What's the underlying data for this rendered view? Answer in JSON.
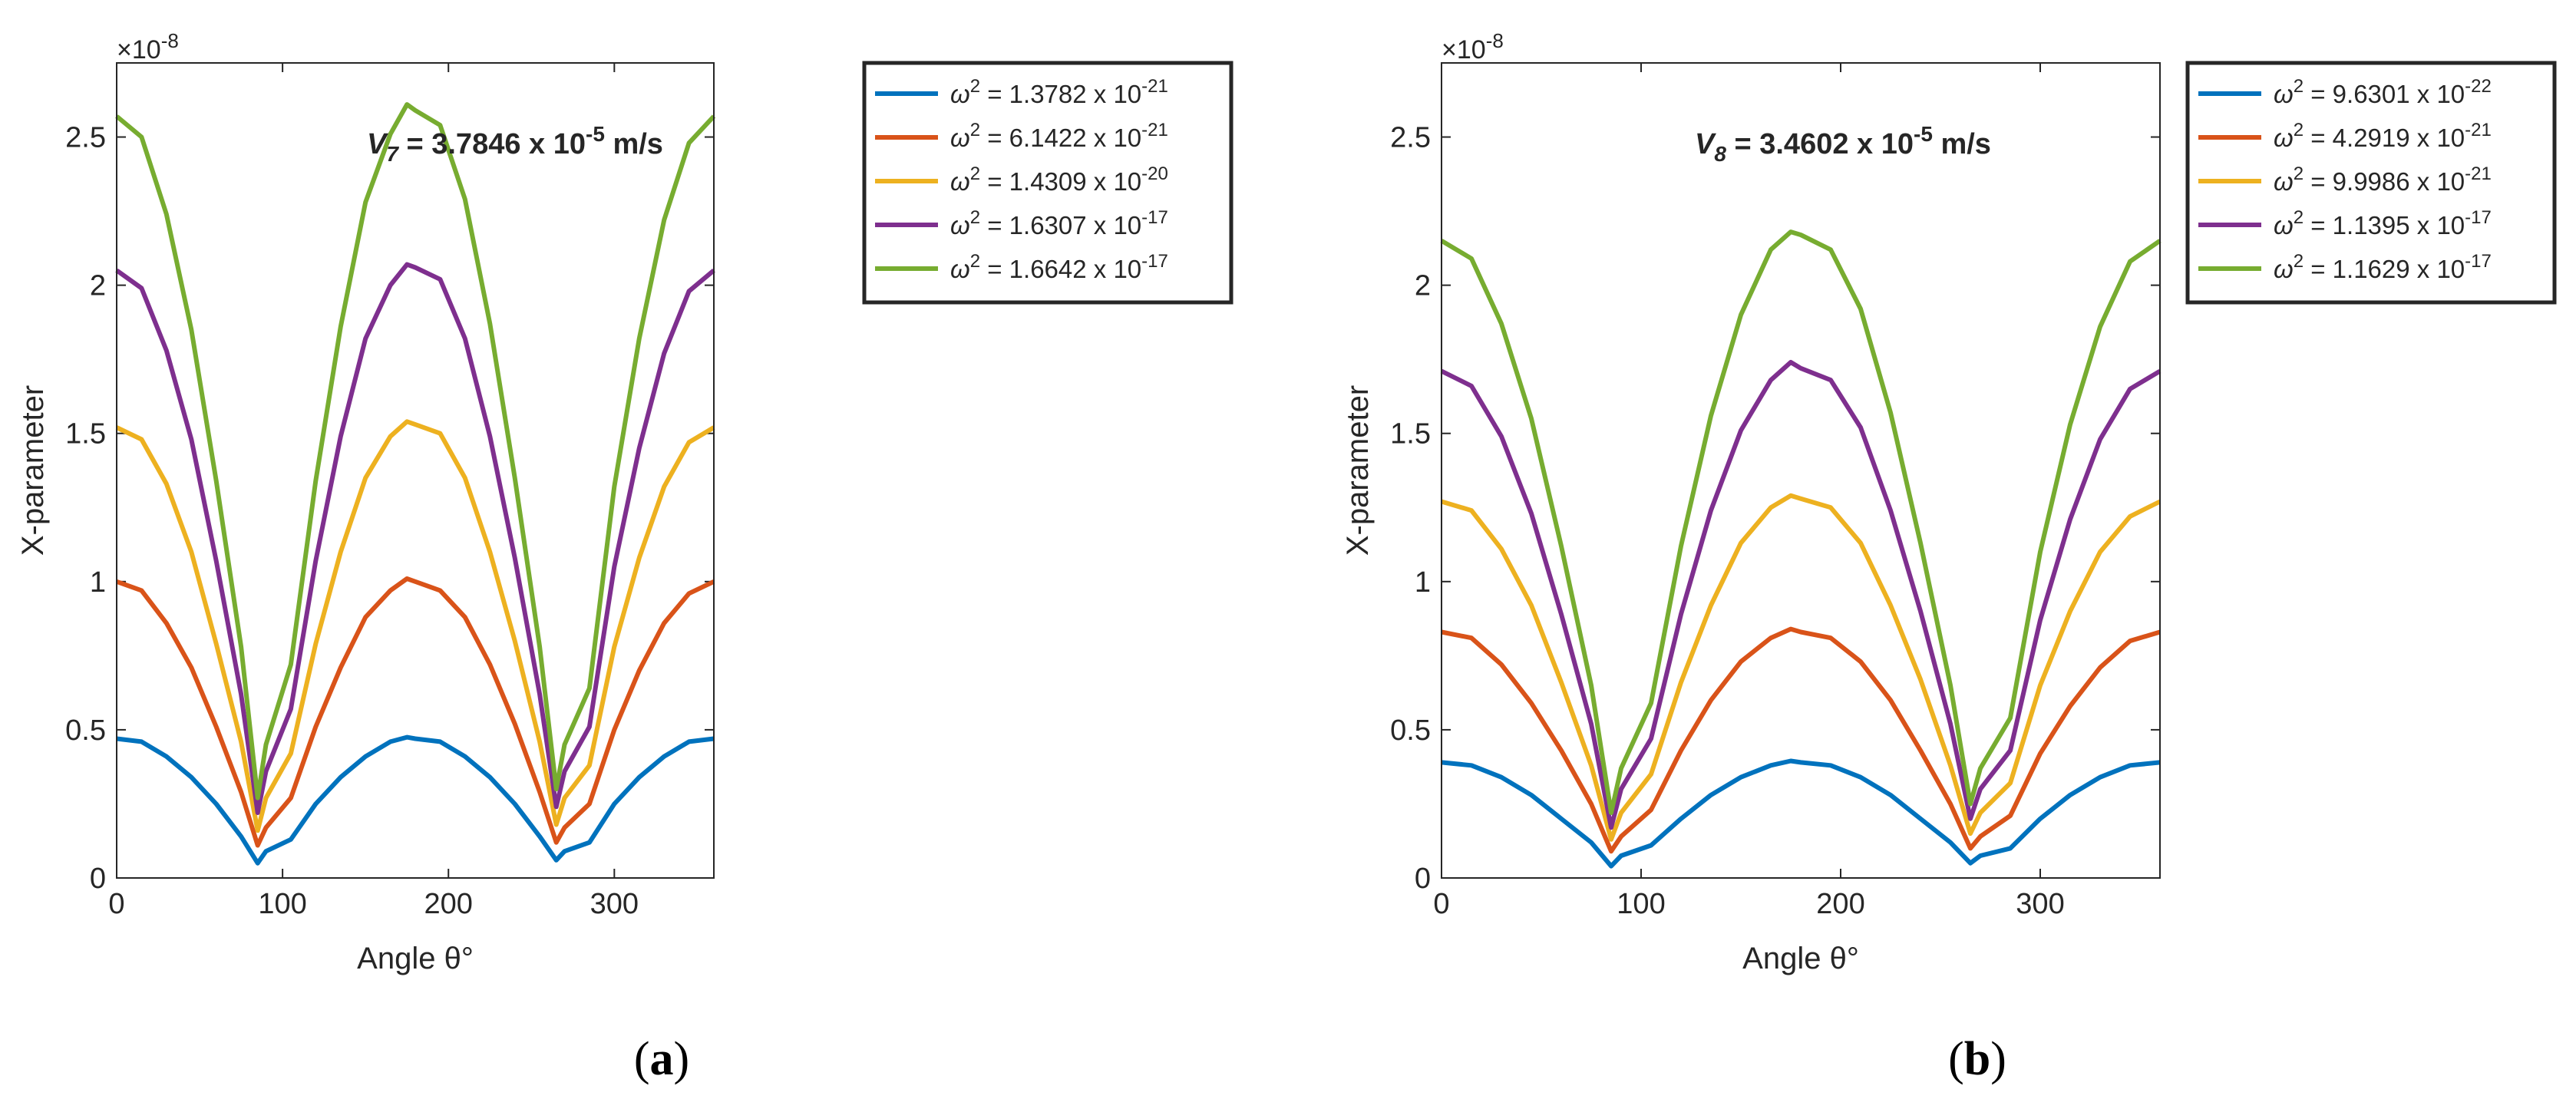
{
  "figure": {
    "caption_a": "(a)",
    "caption_b": "(b)"
  },
  "colors": {
    "axis": "#262626",
    "s1": "#0072BD",
    "s2": "#D95319",
    "s3": "#EDB120",
    "s4": "#7E2F8E",
    "s5": "#77AC30"
  },
  "chart_data": [
    {
      "type": "line",
      "id": "a",
      "xlabel": "Angle θ°",
      "ylabel": "X-parameter",
      "exponent_label": "×10",
      "exponent_power": "-8",
      "xlim": [
        0,
        360
      ],
      "ylim": [
        0,
        2.75
      ],
      "xticks": [
        0,
        100,
        200,
        300
      ],
      "yticks": [
        0,
        0.5,
        1,
        1.5,
        2,
        2.5
      ],
      "ytick_labels": [
        "0",
        "0.5",
        "1",
        "1.5",
        "2",
        "2.5"
      ],
      "xtick_labels": [
        "0",
        "100",
        "200",
        "300"
      ],
      "annotation": {
        "var": "V",
        "sub": "7",
        "text": " = 3.7846 x 10",
        "sup": "-5",
        "unit": " m/s"
      },
      "x": [
        0,
        15,
        30,
        45,
        60,
        75,
        85,
        90,
        105,
        120,
        135,
        150,
        165,
        175,
        180,
        195,
        210,
        225,
        240,
        255,
        265,
        270,
        285,
        300,
        315,
        330,
        345,
        360
      ],
      "series": [
        {
          "name": "ω² = 1.3782 x 10⁻²¹",
          "base": "1.3782",
          "exp": "-21",
          "color": "s1",
          "values": [
            0.47,
            0.46,
            0.41,
            0.34,
            0.25,
            0.14,
            0.05,
            0.09,
            0.13,
            0.25,
            0.34,
            0.41,
            0.46,
            0.475,
            0.47,
            0.46,
            0.41,
            0.34,
            0.25,
            0.14,
            0.06,
            0.09,
            0.12,
            0.25,
            0.34,
            0.41,
            0.46,
            0.47
          ]
        },
        {
          "name": "ω² = 6.1422 x 10⁻²¹",
          "base": "6.1422",
          "exp": "-21",
          "color": "s2",
          "values": [
            1.0,
            0.97,
            0.86,
            0.71,
            0.51,
            0.29,
            0.11,
            0.17,
            0.27,
            0.51,
            0.71,
            0.88,
            0.97,
            1.01,
            1.0,
            0.97,
            0.88,
            0.72,
            0.52,
            0.29,
            0.12,
            0.17,
            0.25,
            0.5,
            0.7,
            0.86,
            0.96,
            1.0
          ]
        },
        {
          "name": "ω² = 1.4309 x 10⁻²⁰",
          "base": "1.4309",
          "exp": "-20",
          "color": "s3",
          "values": [
            1.52,
            1.48,
            1.33,
            1.1,
            0.79,
            0.46,
            0.16,
            0.27,
            0.42,
            0.79,
            1.1,
            1.35,
            1.49,
            1.54,
            1.53,
            1.5,
            1.35,
            1.1,
            0.8,
            0.46,
            0.18,
            0.27,
            0.38,
            0.78,
            1.08,
            1.32,
            1.47,
            1.52
          ]
        },
        {
          "name": "ω² = 1.6307 x 10⁻¹⁷",
          "base": "1.6307",
          "exp": "-17",
          "color": "s4",
          "values": [
            2.05,
            1.99,
            1.78,
            1.48,
            1.07,
            0.62,
            0.22,
            0.36,
            0.57,
            1.07,
            1.49,
            1.82,
            2.0,
            2.07,
            2.06,
            2.02,
            1.82,
            1.49,
            1.08,
            0.62,
            0.24,
            0.36,
            0.51,
            1.05,
            1.45,
            1.77,
            1.98,
            2.05
          ]
        },
        {
          "name": "ω² = 1.6642 x 10⁻¹⁷",
          "base": "1.6642",
          "exp": "-17",
          "color": "s5",
          "values": [
            2.57,
            2.5,
            2.24,
            1.85,
            1.34,
            0.78,
            0.27,
            0.45,
            0.72,
            1.34,
            1.86,
            2.28,
            2.51,
            2.61,
            2.59,
            2.54,
            2.29,
            1.87,
            1.35,
            0.78,
            0.3,
            0.45,
            0.64,
            1.32,
            1.82,
            2.22,
            2.48,
            2.57
          ]
        }
      ]
    },
    {
      "type": "line",
      "id": "b",
      "xlabel": "Angle θ°",
      "ylabel": "X-parameter",
      "exponent_label": "×10",
      "exponent_power": "-8",
      "xlim": [
        0,
        360
      ],
      "ylim": [
        0,
        2.75
      ],
      "xticks": [
        0,
        100,
        200,
        300
      ],
      "yticks": [
        0,
        0.5,
        1,
        1.5,
        2,
        2.5
      ],
      "ytick_labels": [
        "0",
        "0.5",
        "1",
        "1.5",
        "2",
        "2.5"
      ],
      "xtick_labels": [
        "0",
        "100",
        "200",
        "300"
      ],
      "annotation": {
        "var": "V",
        "sub": "8",
        "text": " = 3.4602 x 10",
        "sup": "-5",
        "unit": " m/s"
      },
      "x": [
        0,
        15,
        30,
        45,
        60,
        75,
        85,
        90,
        105,
        120,
        135,
        150,
        165,
        175,
        180,
        195,
        210,
        225,
        240,
        255,
        265,
        270,
        285,
        300,
        315,
        330,
        345,
        360
      ],
      "series": [
        {
          "name": "ω² = 9.6301 x 10⁻²²",
          "base": "9.6301",
          "exp": "-22",
          "color": "s1",
          "values": [
            0.39,
            0.38,
            0.34,
            0.28,
            0.2,
            0.12,
            0.04,
            0.075,
            0.11,
            0.2,
            0.28,
            0.34,
            0.38,
            0.395,
            0.39,
            0.38,
            0.34,
            0.28,
            0.2,
            0.12,
            0.05,
            0.075,
            0.1,
            0.2,
            0.28,
            0.34,
            0.38,
            0.39
          ]
        },
        {
          "name": "ω² = 4.2919 x 10⁻²¹",
          "base": "4.2919",
          "exp": "-21",
          "color": "s2",
          "values": [
            0.83,
            0.81,
            0.72,
            0.59,
            0.43,
            0.25,
            0.09,
            0.14,
            0.23,
            0.43,
            0.6,
            0.73,
            0.81,
            0.84,
            0.83,
            0.81,
            0.73,
            0.6,
            0.43,
            0.25,
            0.1,
            0.14,
            0.21,
            0.42,
            0.58,
            0.71,
            0.8,
            0.83
          ]
        },
        {
          "name": "ω² = 9.9986 x 10⁻²¹",
          "base": "9.9986",
          "exp": "-21",
          "color": "s3",
          "values": [
            1.27,
            1.24,
            1.11,
            0.92,
            0.66,
            0.38,
            0.13,
            0.22,
            0.35,
            0.66,
            0.92,
            1.13,
            1.25,
            1.29,
            1.28,
            1.25,
            1.13,
            0.92,
            0.67,
            0.38,
            0.15,
            0.22,
            0.32,
            0.65,
            0.9,
            1.1,
            1.22,
            1.27
          ]
        },
        {
          "name": "ω² = 1.1395 x 10⁻¹⁷",
          "base": "1.1395",
          "exp": "-17",
          "color": "s4",
          "values": [
            1.71,
            1.66,
            1.49,
            1.23,
            0.89,
            0.52,
            0.17,
            0.3,
            0.47,
            0.89,
            1.24,
            1.51,
            1.68,
            1.74,
            1.72,
            1.68,
            1.52,
            1.24,
            0.9,
            0.52,
            0.2,
            0.3,
            0.43,
            0.87,
            1.21,
            1.48,
            1.65,
            1.71
          ]
        },
        {
          "name": "ω² = 1.1629 x 10⁻¹⁷",
          "base": "1.1629",
          "exp": "-17",
          "color": "s5",
          "values": [
            2.15,
            2.09,
            1.87,
            1.55,
            1.12,
            0.65,
            0.22,
            0.37,
            0.59,
            1.12,
            1.56,
            1.9,
            2.12,
            2.18,
            2.17,
            2.12,
            1.92,
            1.57,
            1.13,
            0.65,
            0.25,
            0.37,
            0.54,
            1.1,
            1.53,
            1.86,
            2.08,
            2.15
          ]
        }
      ]
    }
  ]
}
